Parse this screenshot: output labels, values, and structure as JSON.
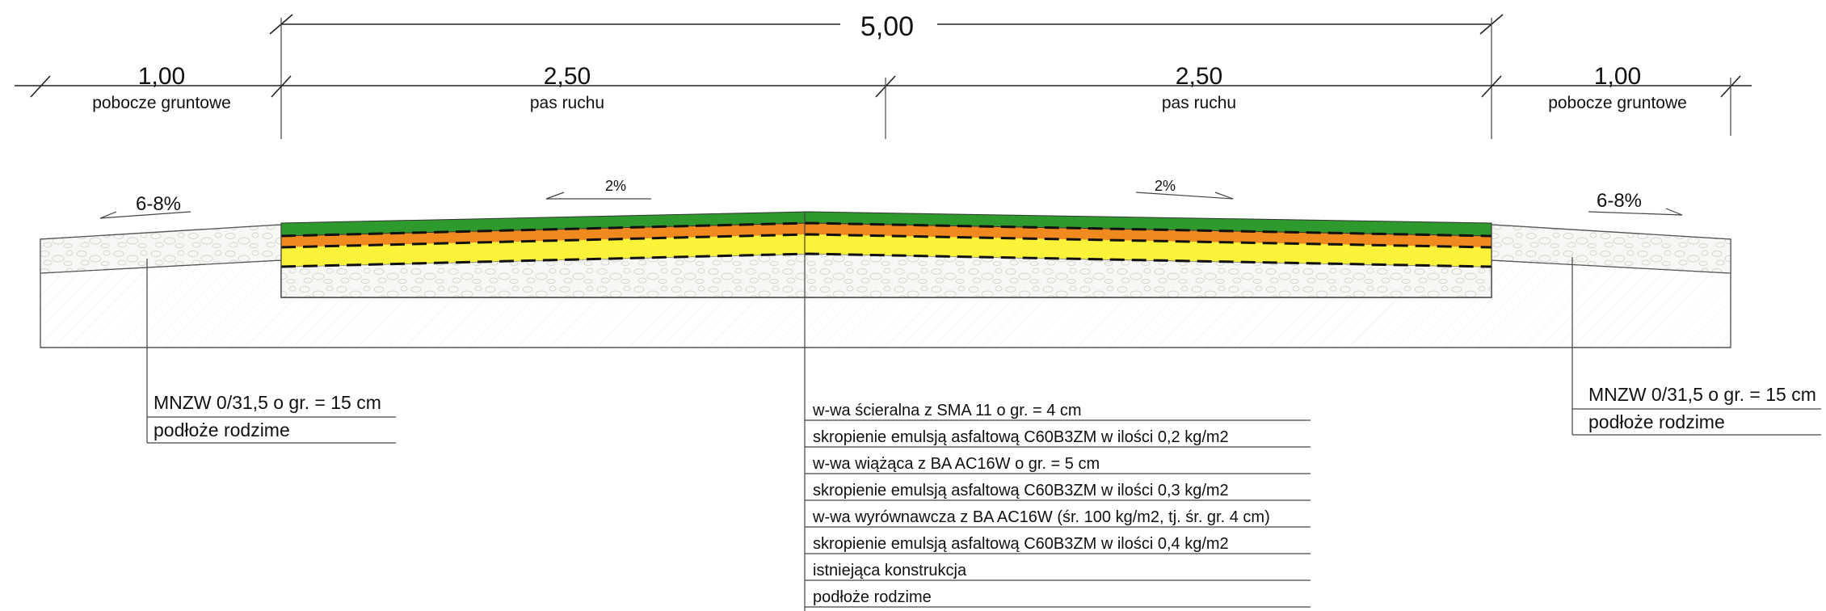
{
  "dimensions": {
    "total": "5,00",
    "left_shoulder": {
      "value": "1,00",
      "label": "pobocze gruntowe"
    },
    "left_lane": {
      "value": "2,50",
      "label": "pas ruchu"
    },
    "right_lane": {
      "value": "2,50",
      "label": "pas ruchu"
    },
    "right_shoulder": {
      "value": "1,00",
      "label": "pobocze gruntowe"
    }
  },
  "slopes": {
    "left_shoulder": "6-8%",
    "left_lane": "2%",
    "right_lane": "2%",
    "right_shoulder": "6-8%"
  },
  "shoulder_legend": {
    "left": [
      "MNZW 0/31,5 o gr. = 15 cm",
      "podłoże rodzime"
    ],
    "right": [
      "MNZW 0/31,5 o gr. = 15 cm",
      "podłoże rodzime"
    ]
  },
  "layer_legend": [
    "w-wa ścieralna z SMA 11 o gr. = 4 cm",
    "skropienie emulsją asfaltową C60B3ZM w ilości 0,2 kg/m2",
    "w-wa wiążąca z BA AC16W o gr. = 5 cm",
    "skropienie emulsją asfaltową C60B3ZM w ilości 0,3 kg/m2",
    "w-wa wyrównawcza z BA AC16W (śr. 100 kg/m2, tj. śr. gr. 4 cm)",
    "skropienie emulsją asfaltową C60B3ZM w ilości 0,4 kg/m2",
    "istniejąca konstrukcja",
    "podłoże rodzime"
  ],
  "colors": {
    "wearing_course": "#2e9a2e",
    "binding_course": "#f08a1e",
    "leveling_course": "#fbf23a",
    "existing_structure": "#f4f4f2",
    "subgrade_hatch": "#e8e8e8"
  }
}
